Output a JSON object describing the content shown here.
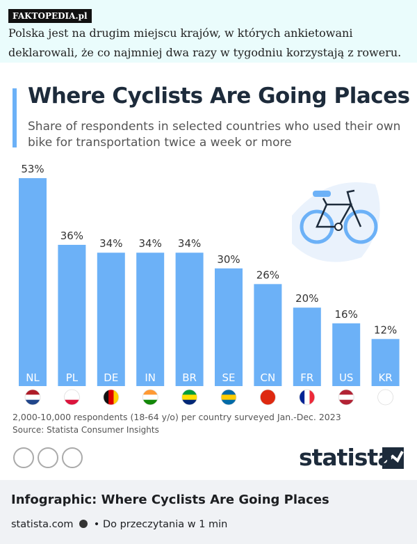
{
  "header": {
    "brand": "FAKTOPEDIA.pl",
    "caption": "Polska jest na drugim miejscu krajów, w których ankietowani deklarowali, że co najmniej dwa razy w tygodniu korzystają z roweru."
  },
  "chart_data": {
    "type": "bar",
    "title": "Where Cyclists Are Going Places",
    "subtitle": "Share of respondents in selected countries who used their own bike for transportation twice a week or more",
    "categories": [
      "NL",
      "PL",
      "DE",
      "IN",
      "BR",
      "SE",
      "CN",
      "FR",
      "US",
      "KR"
    ],
    "values": [
      53,
      36,
      34,
      34,
      34,
      30,
      26,
      20,
      16,
      12
    ],
    "value_labels": [
      "53%",
      "36%",
      "34%",
      "34%",
      "34%",
      "30%",
      "26%",
      "20%",
      "16%",
      "12%"
    ],
    "color": "#6cb1f7",
    "note": "2,000-10,000 respondents (18-64 y/o) per country surveyed Jan.-Dec. 2023",
    "source": "Source: Statista Consumer Insights",
    "brand": "statista"
  },
  "preview": {
    "title": "Infographic: Where Cyclists Are Going Places",
    "site": "statista.com",
    "separator": "•",
    "read_time": "Do przeczytania w 1 min"
  }
}
